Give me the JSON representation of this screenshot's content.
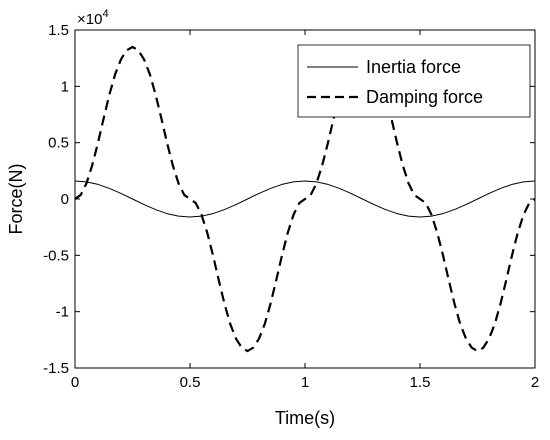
{
  "chart_data": {
    "type": "line",
    "title": "",
    "xlabel": "Time(s)",
    "ylabel": "Force(N)",
    "y_multiplier_label": "×10",
    "y_multiplier_exponent": "4",
    "xlim": [
      0,
      2
    ],
    "ylim": [
      -15000,
      15000
    ],
    "x_ticks": [
      0,
      0.5,
      1,
      1.5,
      2
    ],
    "x_tick_labels": [
      "0",
      "0.5",
      "1",
      "1.5",
      "2"
    ],
    "y_ticks": [
      -15000,
      -10000,
      -5000,
      0,
      5000,
      10000,
      15000
    ],
    "y_tick_labels": [
      "-1.5",
      "-1",
      "-0.5",
      "0",
      "0.5",
      "1",
      "1.5"
    ],
    "grid": false,
    "legend_position": "top-right",
    "series": [
      {
        "name": "Inertia force",
        "style": "solid",
        "x": [
          0,
          0.05,
          0.1,
          0.15,
          0.2,
          0.25,
          0.3,
          0.35,
          0.4,
          0.45,
          0.5,
          0.55,
          0.6,
          0.65,
          0.7,
          0.75,
          0.8,
          0.85,
          0.9,
          0.95,
          1.0,
          1.05,
          1.1,
          1.15,
          1.2,
          1.25,
          1.3,
          1.35,
          1.4,
          1.45,
          1.5,
          1.55,
          1.6,
          1.65,
          1.7,
          1.75,
          1.8,
          1.85,
          1.9,
          1.95,
          2.0
        ],
        "y": [
          1600,
          1522,
          1294,
          940,
          494,
          0,
          -494,
          -940,
          -1294,
          -1522,
          -1600,
          -1522,
          -1294,
          -940,
          -494,
          0,
          494,
          940,
          1294,
          1522,
          1600,
          1522,
          1294,
          940,
          494,
          0,
          -494,
          -940,
          -1294,
          -1522,
          -1600,
          -1522,
          -1294,
          -940,
          -494,
          0,
          494,
          940,
          1294,
          1522,
          1600
        ]
      },
      {
        "name": "Damping force",
        "style": "dashed",
        "x": [
          0,
          0.025,
          0.05,
          0.075,
          0.1,
          0.125,
          0.15,
          0.175,
          0.2,
          0.225,
          0.25,
          0.275,
          0.3,
          0.325,
          0.35,
          0.375,
          0.4,
          0.425,
          0.45,
          0.475,
          0.5,
          0.525,
          0.55,
          0.575,
          0.6,
          0.625,
          0.65,
          0.675,
          0.7,
          0.725,
          0.75,
          0.775,
          0.8,
          0.825,
          0.85,
          0.875,
          0.9,
          0.925,
          0.95,
          0.975,
          1.0,
          1.025,
          1.05,
          1.075,
          1.1,
          1.125,
          1.15,
          1.175,
          1.2,
          1.225,
          1.25,
          1.275,
          1.3,
          1.325,
          1.35,
          1.375,
          1.4,
          1.425,
          1.45,
          1.475,
          1.5,
          1.525,
          1.55,
          1.575,
          1.6,
          1.625,
          1.65,
          1.675,
          1.7,
          1.725,
          1.75,
          1.775,
          1.8,
          1.825,
          1.85,
          1.875,
          1.9,
          1.925,
          1.95,
          1.975,
          2.0
        ],
        "y": [
          0,
          360,
          1400,
          3000,
          5000,
          7200,
          9300,
          11100,
          12400,
          13200,
          13500,
          13200,
          12400,
          11100,
          9300,
          7200,
          5000,
          3000,
          1400,
          360,
          0,
          -360,
          -1400,
          -3000,
          -5000,
          -7200,
          -9300,
          -11100,
          -12400,
          -13200,
          -13500,
          -13200,
          -12400,
          -11100,
          -9300,
          -7200,
          -5000,
          -3000,
          -1400,
          -360,
          0,
          360,
          1400,
          3000,
          5000,
          7200,
          9300,
          11100,
          12400,
          13200,
          13500,
          13200,
          12400,
          11100,
          9300,
          7200,
          5000,
          3000,
          1400,
          360,
          0,
          -360,
          -1400,
          -3000,
          -5000,
          -7200,
          -9300,
          -11100,
          -12400,
          -13200,
          -13500,
          -13200,
          -12400,
          -11100,
          -9300,
          -7200,
          -5000,
          -3000,
          -1400,
          -360,
          0
        ]
      }
    ]
  }
}
